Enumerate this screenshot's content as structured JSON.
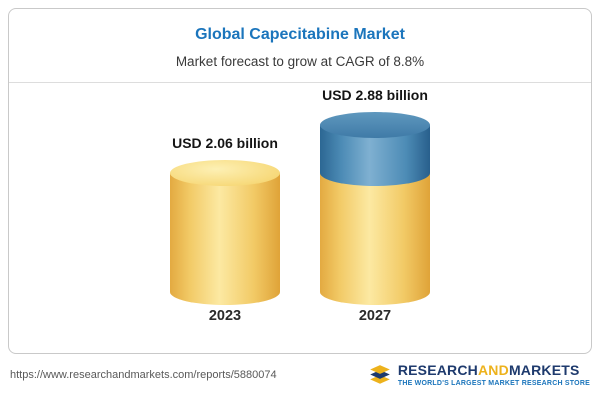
{
  "header": {
    "title": "Global Capecitabine Market",
    "subtitle": "Market forecast to grow at CAGR of 8.8%"
  },
  "chart_data": {
    "type": "bar",
    "title": "Global Capecitabine Market",
    "subtitle": "Market forecast to grow at CAGR of 8.8%",
    "categories": [
      "2023",
      "2027"
    ],
    "values": [
      2.06,
      2.88
    ],
    "value_labels": [
      "USD 2.06 billion",
      "USD 2.88 billion"
    ],
    "unit": "USD billion",
    "cagr_pct": 8.8,
    "legend": "none",
    "colors": {
      "bar_base": "#F2CA66",
      "bar_growth": "#3D7EAB",
      "title": "#1B75BC"
    }
  },
  "footer": {
    "url": "https://www.researchandmarkets.com/reports/5880074",
    "logo": {
      "part1": "RESEARCH",
      "part2": "AND",
      "part3": "MARKETS",
      "tagline": "THE WORLD'S LARGEST MARKET RESEARCH STORE"
    }
  }
}
